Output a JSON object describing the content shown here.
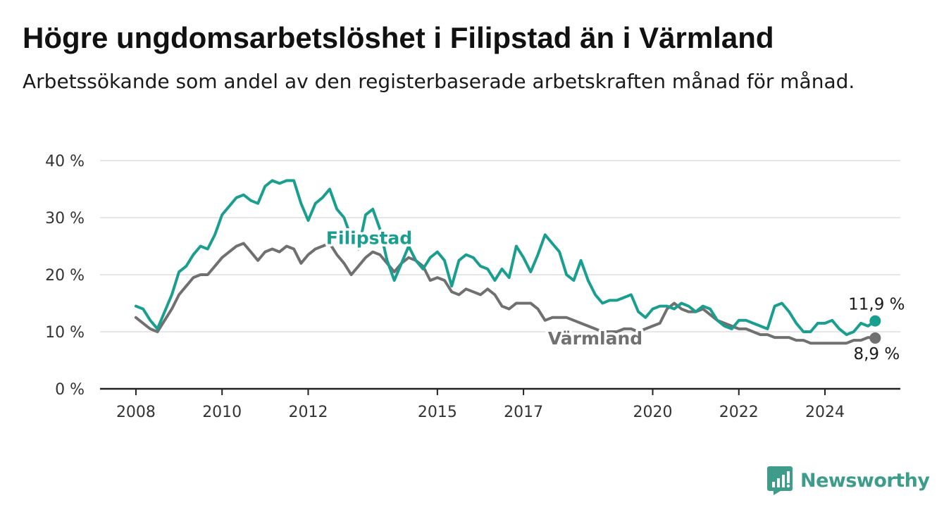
{
  "header": {
    "title": "Högre ungdomsarbetslöshet i Filipstad än i Värmland",
    "subtitle": "Arbetssökande som andel av den registerbaserade arbetskraften månad för månad."
  },
  "colors": {
    "filipstad": "#1a9e8f",
    "varmland": "#707070",
    "grid": "#dddddd",
    "axis": "#222222",
    "brand": "#3d9c8a"
  },
  "brand": {
    "name": "Newsworthy",
    "icon": "newsworthy-logo-icon"
  },
  "chart_data": {
    "type": "line",
    "title": "Högre ungdomsarbetslöshet i Filipstad än i Värmland",
    "subtitle": "Arbetssökande som andel av den registerbaserade arbetskraften månad för månad.",
    "xlabel": "",
    "ylabel": "",
    "ylim": [
      0,
      40
    ],
    "xlim": [
      "2007-03",
      "2025-10"
    ],
    "y_ticks": [
      0,
      10,
      20,
      30,
      40
    ],
    "y_tick_labels": [
      "0 %",
      "10 %",
      "20 %",
      "30 %",
      "40 %"
    ],
    "x_ticks": [
      "2008-01",
      "2010-01",
      "2012-01",
      "2015-01",
      "2017-01",
      "2020-01",
      "2022-01",
      "2024-01"
    ],
    "x_tick_labels": [
      "2008",
      "2010",
      "2012",
      "2015",
      "2017",
      "2020",
      "2022",
      "2024"
    ],
    "grid": "horizontal",
    "legend": "inline labels",
    "series": [
      {
        "name": "Filipstad",
        "label_date": "2013-06",
        "label_value": 26.5,
        "end_label": "11,9 %",
        "points": [
          [
            "2008-01",
            14.5
          ],
          [
            "2008-03",
            14
          ],
          [
            "2008-05",
            12
          ],
          [
            "2008-07",
            10.5
          ],
          [
            "2008-09",
            13.5
          ],
          [
            "2008-11",
            16.5
          ],
          [
            "2009-01",
            20.5
          ],
          [
            "2009-03",
            21.5
          ],
          [
            "2009-05",
            23.5
          ],
          [
            "2009-07",
            25
          ],
          [
            "2009-09",
            24.5
          ],
          [
            "2009-11",
            27
          ],
          [
            "2010-01",
            30.5
          ],
          [
            "2010-03",
            32
          ],
          [
            "2010-05",
            33.5
          ],
          [
            "2010-07",
            34
          ],
          [
            "2010-09",
            33
          ],
          [
            "2010-11",
            32.5
          ],
          [
            "2011-01",
            35.5
          ],
          [
            "2011-03",
            36.5
          ],
          [
            "2011-05",
            36
          ],
          [
            "2011-07",
            36.5
          ],
          [
            "2011-09",
            36.5
          ],
          [
            "2011-11",
            32.5
          ],
          [
            "2012-01",
            29.5
          ],
          [
            "2012-03",
            32.5
          ],
          [
            "2012-05",
            33.5
          ],
          [
            "2012-07",
            35
          ],
          [
            "2012-09",
            31.5
          ],
          [
            "2012-11",
            30
          ],
          [
            "2013-01",
            26.5
          ],
          [
            "2013-03",
            24.5
          ],
          [
            "2013-05",
            30.5
          ],
          [
            "2013-07",
            31.5
          ],
          [
            "2013-09",
            28
          ],
          [
            "2013-11",
            22.5
          ],
          [
            "2014-01",
            19
          ],
          [
            "2014-03",
            22
          ],
          [
            "2014-05",
            25
          ],
          [
            "2014-07",
            22.5
          ],
          [
            "2014-09",
            21
          ],
          [
            "2014-11",
            23
          ],
          [
            "2015-01",
            24
          ],
          [
            "2015-03",
            22.5
          ],
          [
            "2015-05",
            18
          ],
          [
            "2015-07",
            22.5
          ],
          [
            "2015-09",
            23.5
          ],
          [
            "2015-11",
            23
          ],
          [
            "2016-01",
            21.5
          ],
          [
            "2016-03",
            21
          ],
          [
            "2016-05",
            19
          ],
          [
            "2016-07",
            21
          ],
          [
            "2016-09",
            19.5
          ],
          [
            "2016-11",
            25
          ],
          [
            "2017-01",
            23
          ],
          [
            "2017-03",
            20.5
          ],
          [
            "2017-05",
            23.5
          ],
          [
            "2017-07",
            27
          ],
          [
            "2017-09",
            25.5
          ],
          [
            "2017-11",
            24
          ],
          [
            "2018-01",
            20
          ],
          [
            "2018-03",
            19
          ],
          [
            "2018-05",
            22.5
          ],
          [
            "2018-07",
            19
          ],
          [
            "2018-09",
            16.5
          ],
          [
            "2018-11",
            15
          ],
          [
            "2019-01",
            15.5
          ],
          [
            "2019-03",
            15.5
          ],
          [
            "2019-05",
            16
          ],
          [
            "2019-07",
            16.5
          ],
          [
            "2019-09",
            13.5
          ],
          [
            "2019-11",
            12.5
          ],
          [
            "2020-01",
            14
          ],
          [
            "2020-03",
            14.5
          ],
          [
            "2020-05",
            14.5
          ],
          [
            "2020-07",
            14
          ],
          [
            "2020-09",
            15
          ],
          [
            "2020-11",
            14.5
          ],
          [
            "2021-01",
            13.5
          ],
          [
            "2021-03",
            14.5
          ],
          [
            "2021-05",
            14
          ],
          [
            "2021-07",
            12
          ],
          [
            "2021-09",
            11
          ],
          [
            "2021-11",
            10.5
          ],
          [
            "2022-01",
            12
          ],
          [
            "2022-03",
            12
          ],
          [
            "2022-05",
            11.5
          ],
          [
            "2022-07",
            11
          ],
          [
            "2022-09",
            10.5
          ],
          [
            "2022-11",
            14.5
          ],
          [
            "2023-01",
            15
          ],
          [
            "2023-03",
            13.5
          ],
          [
            "2023-05",
            11.5
          ],
          [
            "2023-07",
            10
          ],
          [
            "2023-09",
            10
          ],
          [
            "2023-11",
            11.5
          ],
          [
            "2024-01",
            11.5
          ],
          [
            "2024-03",
            12
          ],
          [
            "2024-05",
            10.5
          ],
          [
            "2024-07",
            9.5
          ],
          [
            "2024-09",
            10
          ],
          [
            "2024-11",
            11.5
          ],
          [
            "2025-01",
            11
          ],
          [
            "2025-03",
            11.9
          ]
        ]
      },
      {
        "name": "Värmland",
        "label_date": "2018-09",
        "label_value": 8.9,
        "end_label": "8,9 %",
        "points": [
          [
            "2008-01",
            12.5
          ],
          [
            "2008-03",
            11.5
          ],
          [
            "2008-05",
            10.5
          ],
          [
            "2008-07",
            10
          ],
          [
            "2008-09",
            12
          ],
          [
            "2008-11",
            14
          ],
          [
            "2009-01",
            16.5
          ],
          [
            "2009-03",
            18
          ],
          [
            "2009-05",
            19.5
          ],
          [
            "2009-07",
            20
          ],
          [
            "2009-09",
            20
          ],
          [
            "2009-11",
            21.5
          ],
          [
            "2010-01",
            23
          ],
          [
            "2010-03",
            24
          ],
          [
            "2010-05",
            25
          ],
          [
            "2010-07",
            25.5
          ],
          [
            "2010-09",
            24
          ],
          [
            "2010-11",
            22.5
          ],
          [
            "2011-01",
            24
          ],
          [
            "2011-03",
            24.5
          ],
          [
            "2011-05",
            24
          ],
          [
            "2011-07",
            25
          ],
          [
            "2011-09",
            24.5
          ],
          [
            "2011-11",
            22
          ],
          [
            "2012-01",
            23.5
          ],
          [
            "2012-03",
            24.5
          ],
          [
            "2012-05",
            25
          ],
          [
            "2012-07",
            25.5
          ],
          [
            "2012-09",
            23.5
          ],
          [
            "2012-11",
            22
          ],
          [
            "2013-01",
            20
          ],
          [
            "2013-03",
            21.5
          ],
          [
            "2013-05",
            23
          ],
          [
            "2013-07",
            24
          ],
          [
            "2013-09",
            23.5
          ],
          [
            "2013-11",
            22
          ],
          [
            "2014-01",
            20.5
          ],
          [
            "2014-03",
            22
          ],
          [
            "2014-05",
            23
          ],
          [
            "2014-07",
            22.5
          ],
          [
            "2014-09",
            21.5
          ],
          [
            "2014-11",
            19
          ],
          [
            "2015-01",
            19.5
          ],
          [
            "2015-03",
            19
          ],
          [
            "2015-05",
            17
          ],
          [
            "2015-07",
            16.5
          ],
          [
            "2015-09",
            17.5
          ],
          [
            "2015-11",
            17
          ],
          [
            "2016-01",
            16.5
          ],
          [
            "2016-03",
            17.5
          ],
          [
            "2016-05",
            16.5
          ],
          [
            "2016-07",
            14.5
          ],
          [
            "2016-09",
            14
          ],
          [
            "2016-11",
            15
          ],
          [
            "2017-01",
            15
          ],
          [
            "2017-03",
            15
          ],
          [
            "2017-05",
            14
          ],
          [
            "2017-07",
            12
          ],
          [
            "2017-09",
            12.5
          ],
          [
            "2017-11",
            12.5
          ],
          [
            "2018-01",
            12.5
          ],
          [
            "2018-03",
            12
          ],
          [
            "2018-05",
            11.5
          ],
          [
            "2018-07",
            11
          ],
          [
            "2018-09",
            10.5
          ],
          [
            "2018-11",
            10
          ],
          [
            "2019-01",
            10
          ],
          [
            "2019-03",
            10
          ],
          [
            "2019-05",
            10.5
          ],
          [
            "2019-07",
            10.5
          ],
          [
            "2019-09",
            10
          ],
          [
            "2019-11",
            10.5
          ],
          [
            "2020-01",
            11
          ],
          [
            "2020-03",
            11.5
          ],
          [
            "2020-05",
            14
          ],
          [
            "2020-07",
            15
          ],
          [
            "2020-09",
            14
          ],
          [
            "2020-11",
            13.5
          ],
          [
            "2021-01",
            13.5
          ],
          [
            "2021-03",
            14
          ],
          [
            "2021-05",
            13
          ],
          [
            "2021-07",
            12
          ],
          [
            "2021-09",
            11.5
          ],
          [
            "2021-11",
            11
          ],
          [
            "2022-01",
            10.5
          ],
          [
            "2022-03",
            10.5
          ],
          [
            "2022-05",
            10
          ],
          [
            "2022-07",
            9.5
          ],
          [
            "2022-09",
            9.5
          ],
          [
            "2022-11",
            9
          ],
          [
            "2023-01",
            9
          ],
          [
            "2023-03",
            9
          ],
          [
            "2023-05",
            8.5
          ],
          [
            "2023-07",
            8.5
          ],
          [
            "2023-09",
            8
          ],
          [
            "2023-11",
            8
          ],
          [
            "2024-01",
            8
          ],
          [
            "2024-03",
            8
          ],
          [
            "2024-05",
            8
          ],
          [
            "2024-07",
            8
          ],
          [
            "2024-09",
            8.5
          ],
          [
            "2024-11",
            8.5
          ],
          [
            "2025-01",
            9
          ],
          [
            "2025-03",
            8.9
          ]
        ]
      }
    ]
  }
}
